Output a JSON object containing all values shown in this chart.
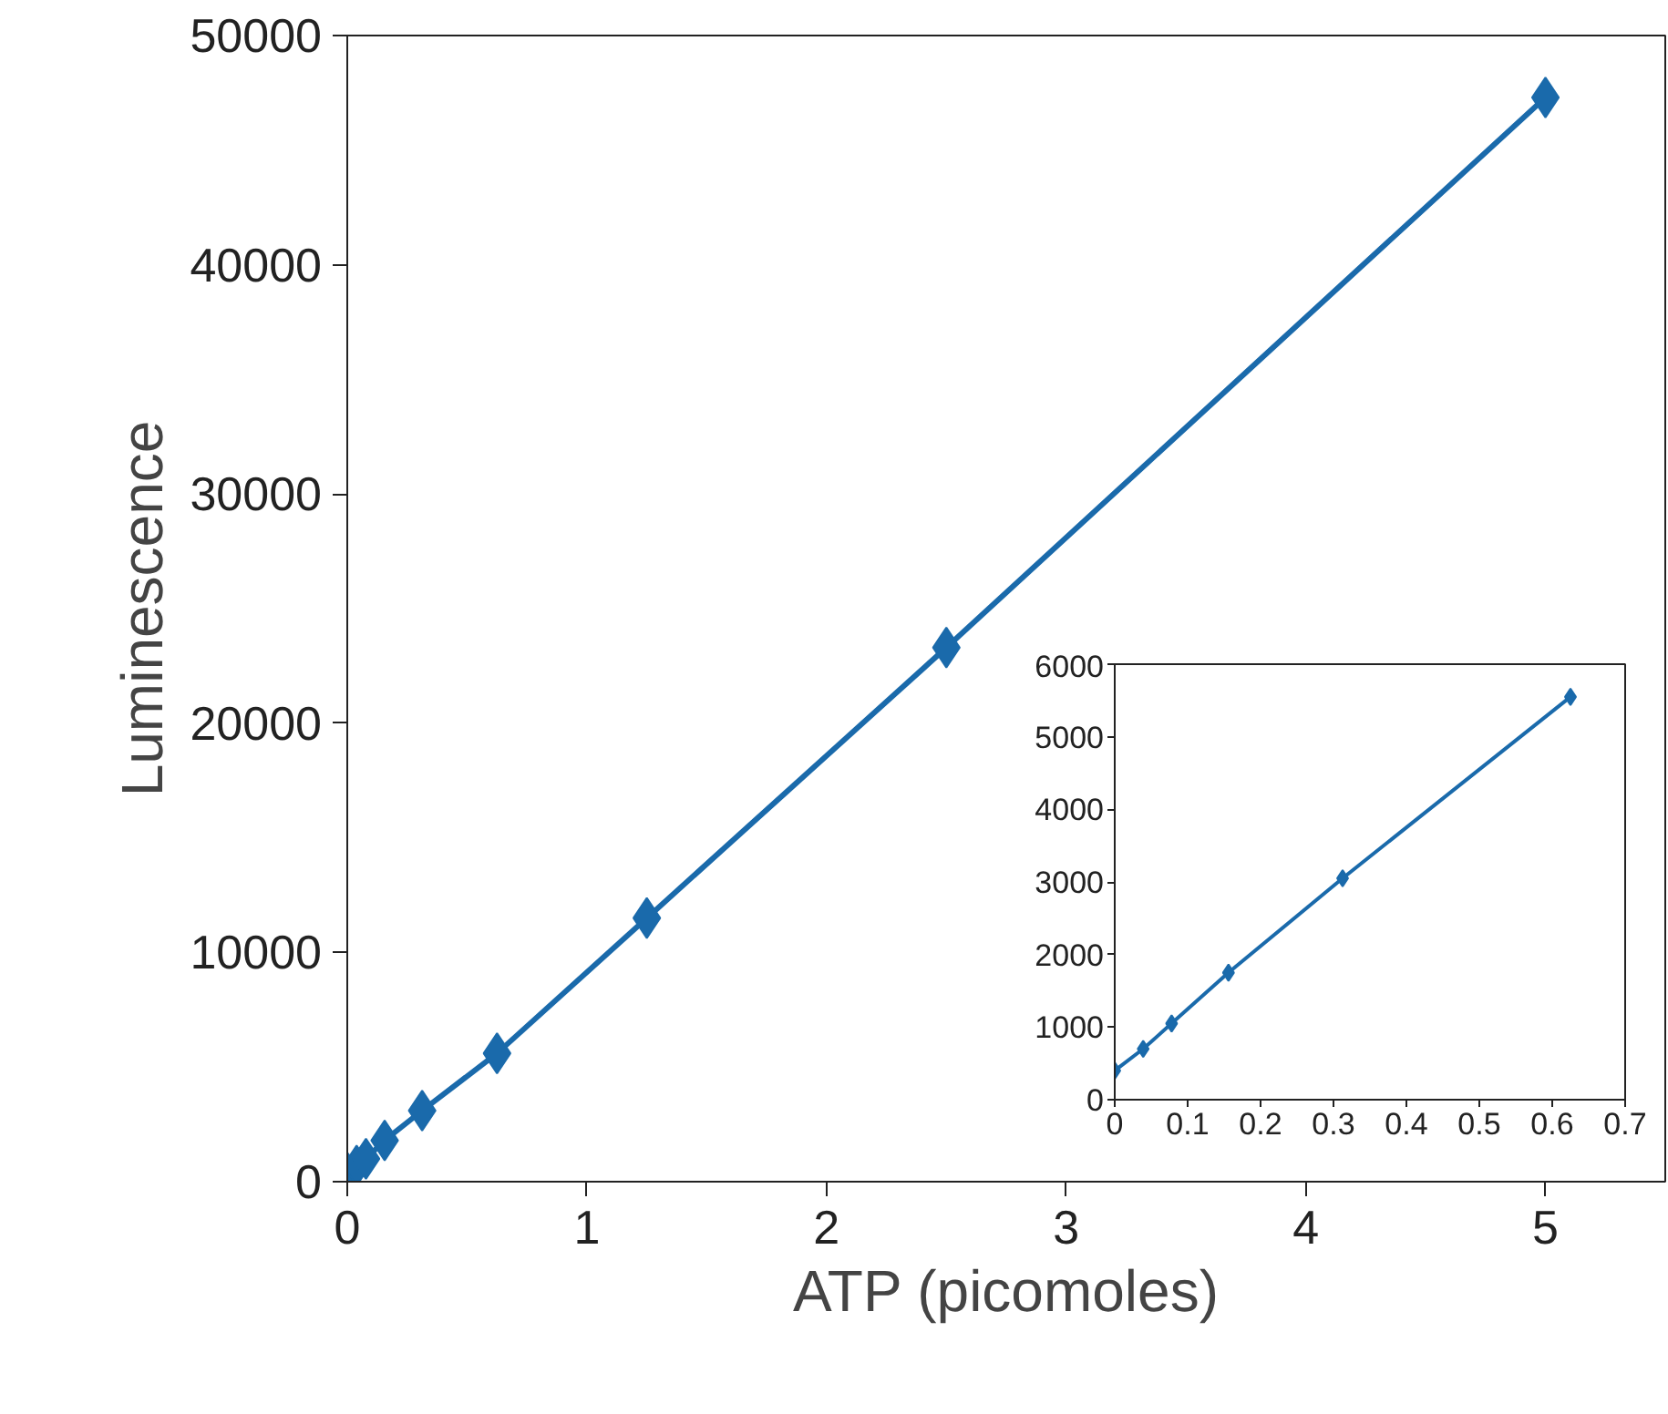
{
  "chart_data": [
    {
      "type": "line",
      "xlabel": "ATP (picomoles)",
      "ylabel": "Luminescence",
      "x": [
        0,
        0.039,
        0.078,
        0.156,
        0.3125,
        0.625,
        1.25,
        2.5,
        5
      ],
      "xlim": [
        0,
        5.5
      ],
      "xticks": [
        0,
        1,
        2,
        3,
        4,
        5
      ],
      "ylim": [
        0,
        50000
      ],
      "yticks": [
        0,
        10000,
        20000,
        30000,
        40000,
        50000
      ],
      "grid": false,
      "marker": "diamond",
      "line_style": "solid",
      "series": [
        {
          "color": "#1a6aab",
          "values": [
            400,
            700,
            1000,
            1800,
            3100,
            5600,
            11500,
            23300,
            47300
          ]
        }
      ]
    },
    {
      "type": "line",
      "x": [
        0,
        0.039,
        0.078,
        0.156,
        0.3125,
        0.625
      ],
      "xlim": [
        0,
        0.7
      ],
      "xticks": [
        0,
        0.1,
        0.2,
        0.3,
        0.4,
        0.5,
        0.6,
        0.7
      ],
      "ylim": [
        0,
        6000
      ],
      "yticks": [
        0,
        1000,
        2000,
        3000,
        4000,
        5000,
        6000
      ],
      "grid": false,
      "marker": "diamond",
      "line_style": "solid",
      "series": [
        {
          "color": "#1a6aab",
          "values": [
            400,
            700,
            1050,
            1750,
            3050,
            5550
          ]
        }
      ]
    }
  ]
}
